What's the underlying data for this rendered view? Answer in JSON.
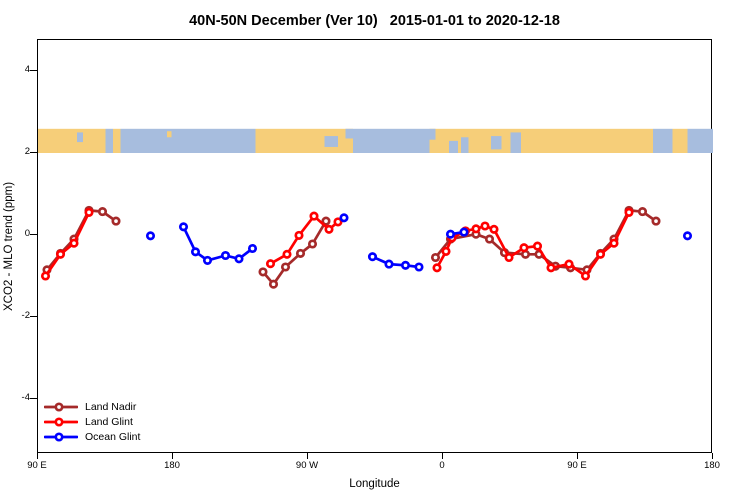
{
  "title": "40N-50N December (Ver 10)   2015-01-01 to 2020-12-18",
  "chart_data": {
    "type": "line",
    "title": "40N-50N December (Ver 10)   2015-01-01 to 2020-12-18",
    "xlabel": "Longitude",
    "ylabel": "XCO2 - MLO trend (ppm)",
    "x_ticks": {
      "values": [
        90,
        180,
        270,
        360,
        450,
        540
      ],
      "labels": [
        "90 E",
        "180",
        "90 W",
        "0",
        "90 E",
        "180"
      ]
    },
    "y_ticks": {
      "values": [
        4,
        2,
        0,
        -2,
        -4
      ],
      "labels": [
        "4",
        "2",
        "0",
        "-2",
        "-4"
      ]
    },
    "xlim_plot_degrees": [
      90,
      540
    ],
    "ylim": [
      -5.34,
      4.76
    ],
    "grid": false,
    "legend_position": "bottom-left",
    "marker": "open-circle",
    "series": [
      {
        "id": "land-nadir",
        "name": "Land Nadir",
        "color": "#A52A2A",
        "segments": [
          [
            [
              96,
              -0.85
            ],
            [
              105,
              -0.45
            ],
            [
              114,
              -0.1
            ],
            [
              124,
              0.6
            ],
            [
              133,
              0.57
            ],
            [
              142,
              0.34
            ]
          ],
          [
            [
              240,
              -0.9
            ],
            [
              247,
              -1.2
            ],
            [
              255,
              -0.78
            ],
            [
              265,
              -0.45
            ],
            [
              273,
              -0.22
            ],
            [
              282,
              0.34
            ]
          ],
          [
            [
              355,
              -0.55
            ],
            [
              365,
              -0.1
            ],
            [
              382,
              0.02
            ],
            [
              391,
              -0.1
            ],
            [
              401,
              -0.43
            ],
            [
              415,
              -0.47
            ],
            [
              424,
              -0.47
            ],
            [
              435,
              -0.76
            ],
            [
              445,
              -0.8
            ],
            [
              456,
              -0.85
            ],
            [
              465,
              -0.45
            ],
            [
              474,
              -0.1
            ],
            [
              484,
              0.6
            ],
            [
              493,
              0.57
            ],
            [
              502,
              0.34
            ]
          ]
        ]
      },
      {
        "id": "land-glint",
        "name": "Land Glint",
        "color": "#FF0000",
        "segments": [
          [
            [
              95,
              -1.0
            ],
            [
              105,
              -0.47
            ],
            [
              114,
              -0.2
            ],
            [
              124,
              0.55
            ]
          ],
          [
            [
              245,
              -0.7
            ],
            [
              256,
              -0.47
            ],
            [
              264,
              -0.01
            ],
            [
              274,
              0.46
            ],
            [
              284,
              0.14
            ],
            [
              290,
              0.32
            ]
          ],
          [
            [
              356,
              -0.8
            ],
            [
              362,
              -0.4
            ],
            [
              366,
              -0.07
            ],
            [
              375,
              0.1
            ],
            [
              382,
              0.15
            ],
            [
              388,
              0.22
            ],
            [
              394,
              0.14
            ],
            [
              404,
              -0.55
            ],
            [
              414,
              -0.31
            ],
            [
              423,
              -0.27
            ],
            [
              432,
              -0.8
            ],
            [
              444,
              -0.71
            ],
            [
              455,
              -1.0
            ],
            [
              465,
              -0.47
            ],
            [
              474,
              -0.2
            ],
            [
              484,
              0.55
            ]
          ]
        ]
      },
      {
        "id": "ocean-glint",
        "name": "Ocean Glint",
        "color": "#0000FF",
        "segments": [
          [
            [
              165,
              -0.02
            ]
          ],
          [
            [
              187,
              0.2
            ],
            [
              195,
              -0.41
            ],
            [
              203,
              -0.62
            ],
            [
              215,
              -0.5
            ],
            [
              224,
              -0.58
            ],
            [
              233,
              -0.33
            ]
          ],
          [
            [
              294,
              0.42
            ]
          ],
          [
            [
              313,
              -0.53
            ],
            [
              324,
              -0.71
            ],
            [
              335,
              -0.74
            ],
            [
              344,
              -0.78
            ]
          ],
          [
            [
              365,
              0.02
            ],
            [
              374,
              0.07
            ]
          ],
          [
            [
              523,
              -0.02
            ]
          ]
        ]
      }
    ],
    "map_band": {
      "description": "40N-50N world map strip drawn across plot near y=2",
      "value_top": 2.59,
      "value_bottom": 2.0,
      "land_color": "#F6CE79",
      "ocean_color": "#A7BDDE",
      "segments": [
        {
          "from": 90,
          "to": 135,
          "type": "land"
        },
        {
          "from": 116,
          "to": 120,
          "type": "ocean",
          "top": 0.15,
          "bottom": 0.55
        },
        {
          "from": 135,
          "to": 140,
          "type": "ocean"
        },
        {
          "from": 140,
          "to": 145,
          "type": "land"
        },
        {
          "from": 145,
          "to": 235,
          "type": "ocean"
        },
        {
          "from": 176,
          "to": 179,
          "type": "land",
          "top": 0.1,
          "bottom": 0.35
        },
        {
          "from": 235,
          "to": 300,
          "type": "land"
        },
        {
          "from": 281,
          "to": 290,
          "type": "ocean",
          "top": 0.3,
          "bottom": 0.75
        },
        {
          "from": 295,
          "to": 300,
          "type": "ocean",
          "top": 0.0,
          "bottom": 0.4
        },
        {
          "from": 300,
          "to": 351,
          "type": "ocean"
        },
        {
          "from": 351,
          "to": 500,
          "type": "land"
        },
        {
          "from": 351,
          "to": 355,
          "type": "ocean",
          "top": 0.0,
          "bottom": 0.45
        },
        {
          "from": 364,
          "to": 370,
          "type": "ocean",
          "top": 0.5,
          "bottom": 1.0
        },
        {
          "from": 372,
          "to": 377,
          "type": "ocean",
          "top": 0.35,
          "bottom": 1.0
        },
        {
          "from": 392,
          "to": 399,
          "type": "ocean",
          "top": 0.3,
          "bottom": 0.85
        },
        {
          "from": 405,
          "to": 412,
          "type": "ocean",
          "top": 0.15,
          "bottom": 1.0
        },
        {
          "from": 500,
          "to": 513,
          "type": "ocean"
        },
        {
          "from": 513,
          "to": 523,
          "type": "land"
        },
        {
          "from": 523,
          "to": 540,
          "type": "ocean"
        }
      ]
    }
  }
}
